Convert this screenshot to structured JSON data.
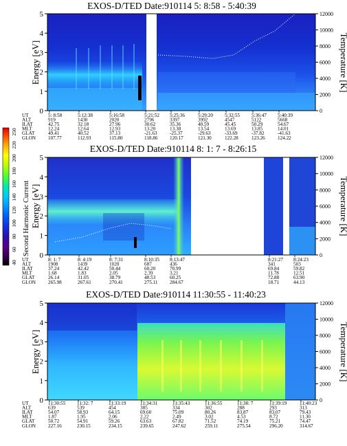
{
  "colorbar": {
    "label": "Second Harmonic Current",
    "ticks": [
      "40",
      "60",
      "80",
      "100",
      "120",
      "140",
      "160",
      "180",
      "200",
      "220",
      "250"
    ],
    "colors": [
      "#000000",
      "#3a0050",
      "#5a0088",
      "#2a10b0",
      "#1030e0",
      "#0060ff",
      "#0098ff",
      "#00c8ff",
      "#00e8b0",
      "#40ff40",
      "#b0ff00",
      "#ffff00",
      "#ffb000",
      "#ff5000",
      "#e00000"
    ]
  },
  "chart_data": [
    {
      "type": "heatmap",
      "title": "EXOS-D/TED   Date:910114   5: 8:58 - 5:40:39",
      "ylabel": "Energy [eV]",
      "y2label": "Temperature [K]",
      "yticks": [
        "0",
        "1",
        "2",
        "3",
        "4",
        "5"
      ],
      "y2ticks": [
        "0",
        "2000",
        "4000",
        "6000",
        "8000",
        "10000",
        "12000"
      ],
      "ylim": [
        0,
        5
      ],
      "y2lim": [
        0,
        12000
      ],
      "rows": [
        {
          "label": "UT",
          "values": [
            "5: 8:58",
            "5:12:38",
            "5:16:58",
            "5:21:52",
            "5:25:36",
            "5:29:20",
            "5:32:55",
            "5:36:47",
            "5:40:39"
          ]
        },
        {
          "label": "ALT",
          "values": [
            "919",
            "1430",
            "2020",
            "2796",
            "3397",
            "3992",
            "4547",
            "5122",
            "5668"
          ]
        },
        {
          "label": "ILAT",
          "values": [
            "42.75",
            "32.18",
            "27.96",
            "30.62",
            "35.36",
            "40.59",
            "45.45",
            "50.29",
            "54.67"
          ]
        },
        {
          "label": "MLT",
          "values": [
            "12.24",
            "12.64",
            "12.93",
            "13.20",
            "13.38",
            "13.54",
            "13.69",
            "13.85",
            "14.01"
          ]
        },
        {
          "label": "GLAT",
          "values": [
            "49.41",
            "40.52",
            "37.13",
            "-21.63",
            "-25.37",
            "-29.63",
            "-33.69",
            "-37.82",
            "-41.63"
          ]
        },
        {
          "label": "GLON",
          "values": [
            "107.77",
            "112.93",
            "115.80",
            "118.86",
            "120.17",
            "121.30",
            "122.28",
            "123.26",
            "124.22"
          ]
        }
      ]
    },
    {
      "type": "heatmap",
      "title": "EXOS-D/TED   Date:910114   8: 1: 7 - 8:26:15",
      "ylabel": "Energy [eV]",
      "y2label": "Temperature [K]",
      "yticks": [
        "0",
        "1",
        "2",
        "3",
        "4",
        "5"
      ],
      "y2ticks": [
        "0",
        "2000",
        "4000",
        "6000",
        "8000",
        "10000",
        "12000"
      ],
      "ylim": [
        0,
        5
      ],
      "y2lim": [
        0,
        12000
      ],
      "rows": [
        {
          "label": "UT",
          "values": [
            "8: 1: 7",
            "8: 4:19",
            "8: 7:31",
            "8:10:35",
            "8:13:47",
            "8:21:27",
            "8:24:23"
          ]
        },
        {
          "label": "ALT",
          "values": [
            "1908",
            "1439",
            "1020",
            "687",
            "436",
            "341",
            "503"
          ]
        },
        {
          "label": "ILAT",
          "values": [
            "37.24",
            "42.42",
            "50.44",
            "60.20",
            "70.99",
            "69.84",
            "59.82"
          ]
        },
        {
          "label": "MLT",
          "values": [
            "1.68",
            "1.83",
            "2.05",
            "2.39",
            "3.21",
            "11.78",
            "12.51"
          ]
        },
        {
          "label": "GLAT",
          "values": [
            "26.14",
            "31.05",
            "38.79",
            "48.53",
            "60.25",
            "72.88",
            "63.90"
          ]
        },
        {
          "label": "GLON",
          "values": [
            "265.98",
            "267.61",
            "270.41",
            "275.11",
            "284.67",
            "18.71",
            "44.13"
          ]
        }
      ]
    },
    {
      "type": "heatmap",
      "title": "EXOS-D/TED   Date:910114   11:30:55 - 11:40:23",
      "ylabel": "Energy [eV]",
      "y2label": "Temperature [K]",
      "yticks": [
        "0",
        "1",
        "2",
        "3",
        "4",
        "5"
      ],
      "y2ticks": [
        "0",
        "2000",
        "4000",
        "6000",
        "8000",
        "10000",
        "12000"
      ],
      "ylim": [
        0,
        5
      ],
      "y2lim": [
        0,
        12000
      ],
      "rows": [
        {
          "label": "UT",
          "values": [
            "11:30:55",
            "11:32: 7",
            "11:33:19",
            "11:34:31",
            "11:35:43",
            "11:36:55",
            "11:38: 7",
            "11:39:19",
            "11:40:23"
          ]
        },
        {
          "label": "ALT",
          "values": [
            "639",
            "539",
            "454",
            "385",
            "334",
            "302",
            "288",
            "293",
            "313"
          ]
        },
        {
          "label": "ILAT",
          "values": [
            "54.07",
            "58.93",
            "64.15",
            "69.60",
            "75.09",
            "80.26",
            "83.87",
            "83.07",
            "79.43"
          ]
        },
        {
          "label": "MLT",
          "values": [
            "1.87",
            "1.95",
            "2.06",
            "2.22",
            "2.49",
            "3.02",
            "4.53",
            "8.72",
            "11.30"
          ]
        },
        {
          "label": "GLAT",
          "values": [
            "50.72",
            "54.91",
            "59.26",
            "63.63",
            "67.82",
            "71.52",
            "74.19",
            "75.21",
            "74.47"
          ]
        },
        {
          "label": "GLON",
          "values": [
            "227.16",
            "230.15",
            "234.15",
            "239.65",
            "247.62",
            "259.11",
            "275.54",
            "296.20",
            "314.67"
          ]
        }
      ]
    }
  ]
}
